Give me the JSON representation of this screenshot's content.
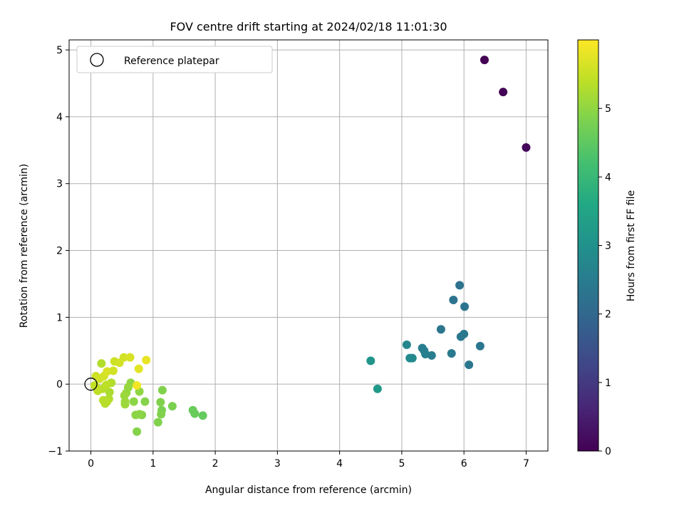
{
  "chart_data": {
    "type": "scatter",
    "title": "FOV centre drift starting at 2024/02/18 11:01:30",
    "xlabel": "Angular distance from reference (arcmin)",
    "ylabel": "Rotation from reference (arcmin)",
    "xlim": [
      -0.35,
      7.35
    ],
    "ylim": [
      -1,
      5.15
    ],
    "xticks": [
      0,
      1,
      2,
      3,
      4,
      5,
      6,
      7
    ],
    "yticks": [
      -1,
      0,
      1,
      2,
      3,
      4,
      5
    ],
    "grid": true,
    "legend": {
      "placement": "top-left",
      "entries": [
        "Reference platepar"
      ]
    },
    "reference_point": {
      "x": 0,
      "y": 0
    },
    "colorbar": {
      "label": "Hours from first FF file",
      "range": [
        0,
        6
      ],
      "ticks": [
        0,
        1,
        2,
        3,
        4,
        5
      ],
      "colormap": "viridis"
    },
    "points": [
      {
        "x": 6.33,
        "y": 4.85,
        "h": 0.02
      },
      {
        "x": 6.63,
        "y": 4.37,
        "h": 0.05
      },
      {
        "x": 7.0,
        "y": 3.54,
        "h": 0.1
      },
      {
        "x": 5.93,
        "y": 1.48,
        "h": 2.25
      },
      {
        "x": 5.83,
        "y": 1.26,
        "h": 2.3
      },
      {
        "x": 6.01,
        "y": 1.16,
        "h": 2.3
      },
      {
        "x": 5.63,
        "y": 0.82,
        "h": 2.35
      },
      {
        "x": 6.0,
        "y": 0.75,
        "h": 2.4
      },
      {
        "x": 5.95,
        "y": 0.71,
        "h": 2.4
      },
      {
        "x": 6.26,
        "y": 0.57,
        "h": 2.35
      },
      {
        "x": 5.8,
        "y": 0.46,
        "h": 2.45
      },
      {
        "x": 6.08,
        "y": 0.29,
        "h": 2.4
      },
      {
        "x": 5.33,
        "y": 0.54,
        "h": 2.5
      },
      {
        "x": 5.36,
        "y": 0.5,
        "h": 2.55
      },
      {
        "x": 5.38,
        "y": 0.45,
        "h": 2.6
      },
      {
        "x": 5.48,
        "y": 0.43,
        "h": 2.55
      },
      {
        "x": 5.08,
        "y": 0.59,
        "h": 2.75
      },
      {
        "x": 5.13,
        "y": 0.39,
        "h": 2.8
      },
      {
        "x": 5.17,
        "y": 0.39,
        "h": 2.85
      },
      {
        "x": 4.5,
        "y": 0.35,
        "h": 3.1
      },
      {
        "x": 4.61,
        "y": -0.07,
        "h": 3.2
      },
      {
        "x": 1.8,
        "y": -0.47,
        "h": 4.55
      },
      {
        "x": 1.67,
        "y": -0.44,
        "h": 4.6
      },
      {
        "x": 1.64,
        "y": -0.39,
        "h": 4.6
      },
      {
        "x": 1.31,
        "y": -0.33,
        "h": 4.8
      },
      {
        "x": 1.15,
        "y": -0.09,
        "h": 4.85
      },
      {
        "x": 1.14,
        "y": -0.39,
        "h": 4.8
      },
      {
        "x": 1.13,
        "y": -0.45,
        "h": 4.85
      },
      {
        "x": 1.12,
        "y": -0.27,
        "h": 4.85
      },
      {
        "x": 1.08,
        "y": -0.57,
        "h": 4.85
      },
      {
        "x": 0.74,
        "y": -0.71,
        "h": 4.9
      },
      {
        "x": 0.82,
        "y": -0.46,
        "h": 4.9
      },
      {
        "x": 0.78,
        "y": -0.45,
        "h": 4.95
      },
      {
        "x": 0.72,
        "y": -0.46,
        "h": 4.95
      },
      {
        "x": 0.69,
        "y": -0.26,
        "h": 4.95
      },
      {
        "x": 0.87,
        "y": -0.26,
        "h": 4.9
      },
      {
        "x": 0.78,
        "y": -0.11,
        "h": 5.0
      },
      {
        "x": 0.64,
        "y": 0.02,
        "h": 5.0
      },
      {
        "x": 0.6,
        "y": -0.05,
        "h": 5.05
      },
      {
        "x": 0.57,
        "y": -0.13,
        "h": 5.05
      },
      {
        "x": 0.54,
        "y": -0.17,
        "h": 5.1
      },
      {
        "x": 0.55,
        "y": -0.26,
        "h": 5.1
      },
      {
        "x": 0.55,
        "y": -0.3,
        "h": 5.1
      },
      {
        "x": 0.3,
        "y": -0.12,
        "h": 5.25
      },
      {
        "x": 0.29,
        "y": -0.22,
        "h": 5.3
      },
      {
        "x": 0.26,
        "y": -0.26,
        "h": 5.35
      },
      {
        "x": 0.23,
        "y": -0.29,
        "h": 5.35
      },
      {
        "x": 0.2,
        "y": -0.24,
        "h": 5.35
      },
      {
        "x": 0.19,
        "y": -0.07,
        "h": 5.35
      },
      {
        "x": 0.17,
        "y": 0.31,
        "h": 5.3
      },
      {
        "x": 0.33,
        "y": 0.02,
        "h": 5.3
      },
      {
        "x": 0.25,
        "y": -0.01,
        "h": 5.4
      },
      {
        "x": 0.11,
        "y": -0.1,
        "h": 5.4
      },
      {
        "x": 0.09,
        "y": -0.05,
        "h": 5.45
      },
      {
        "x": 0.06,
        "y": -0.02,
        "h": 5.45
      },
      {
        "x": 0.08,
        "y": 0.12,
        "h": 5.55
      },
      {
        "x": 0.14,
        "y": 0.08,
        "h": 5.6
      },
      {
        "x": 0.21,
        "y": 0.12,
        "h": 5.6
      },
      {
        "x": 0.26,
        "y": 0.19,
        "h": 5.65
      },
      {
        "x": 0.36,
        "y": 0.2,
        "h": 5.6
      },
      {
        "x": 0.38,
        "y": 0.34,
        "h": 5.55
      },
      {
        "x": 0.46,
        "y": 0.32,
        "h": 5.6
      },
      {
        "x": 0.53,
        "y": 0.4,
        "h": 5.6
      },
      {
        "x": 0.63,
        "y": 0.4,
        "h": 5.65
      },
      {
        "x": 0.77,
        "y": 0.23,
        "h": 5.75
      },
      {
        "x": 0.89,
        "y": 0.36,
        "h": 5.8
      },
      {
        "x": 0.74,
        "y": -0.02,
        "h": 5.9
      }
    ]
  }
}
